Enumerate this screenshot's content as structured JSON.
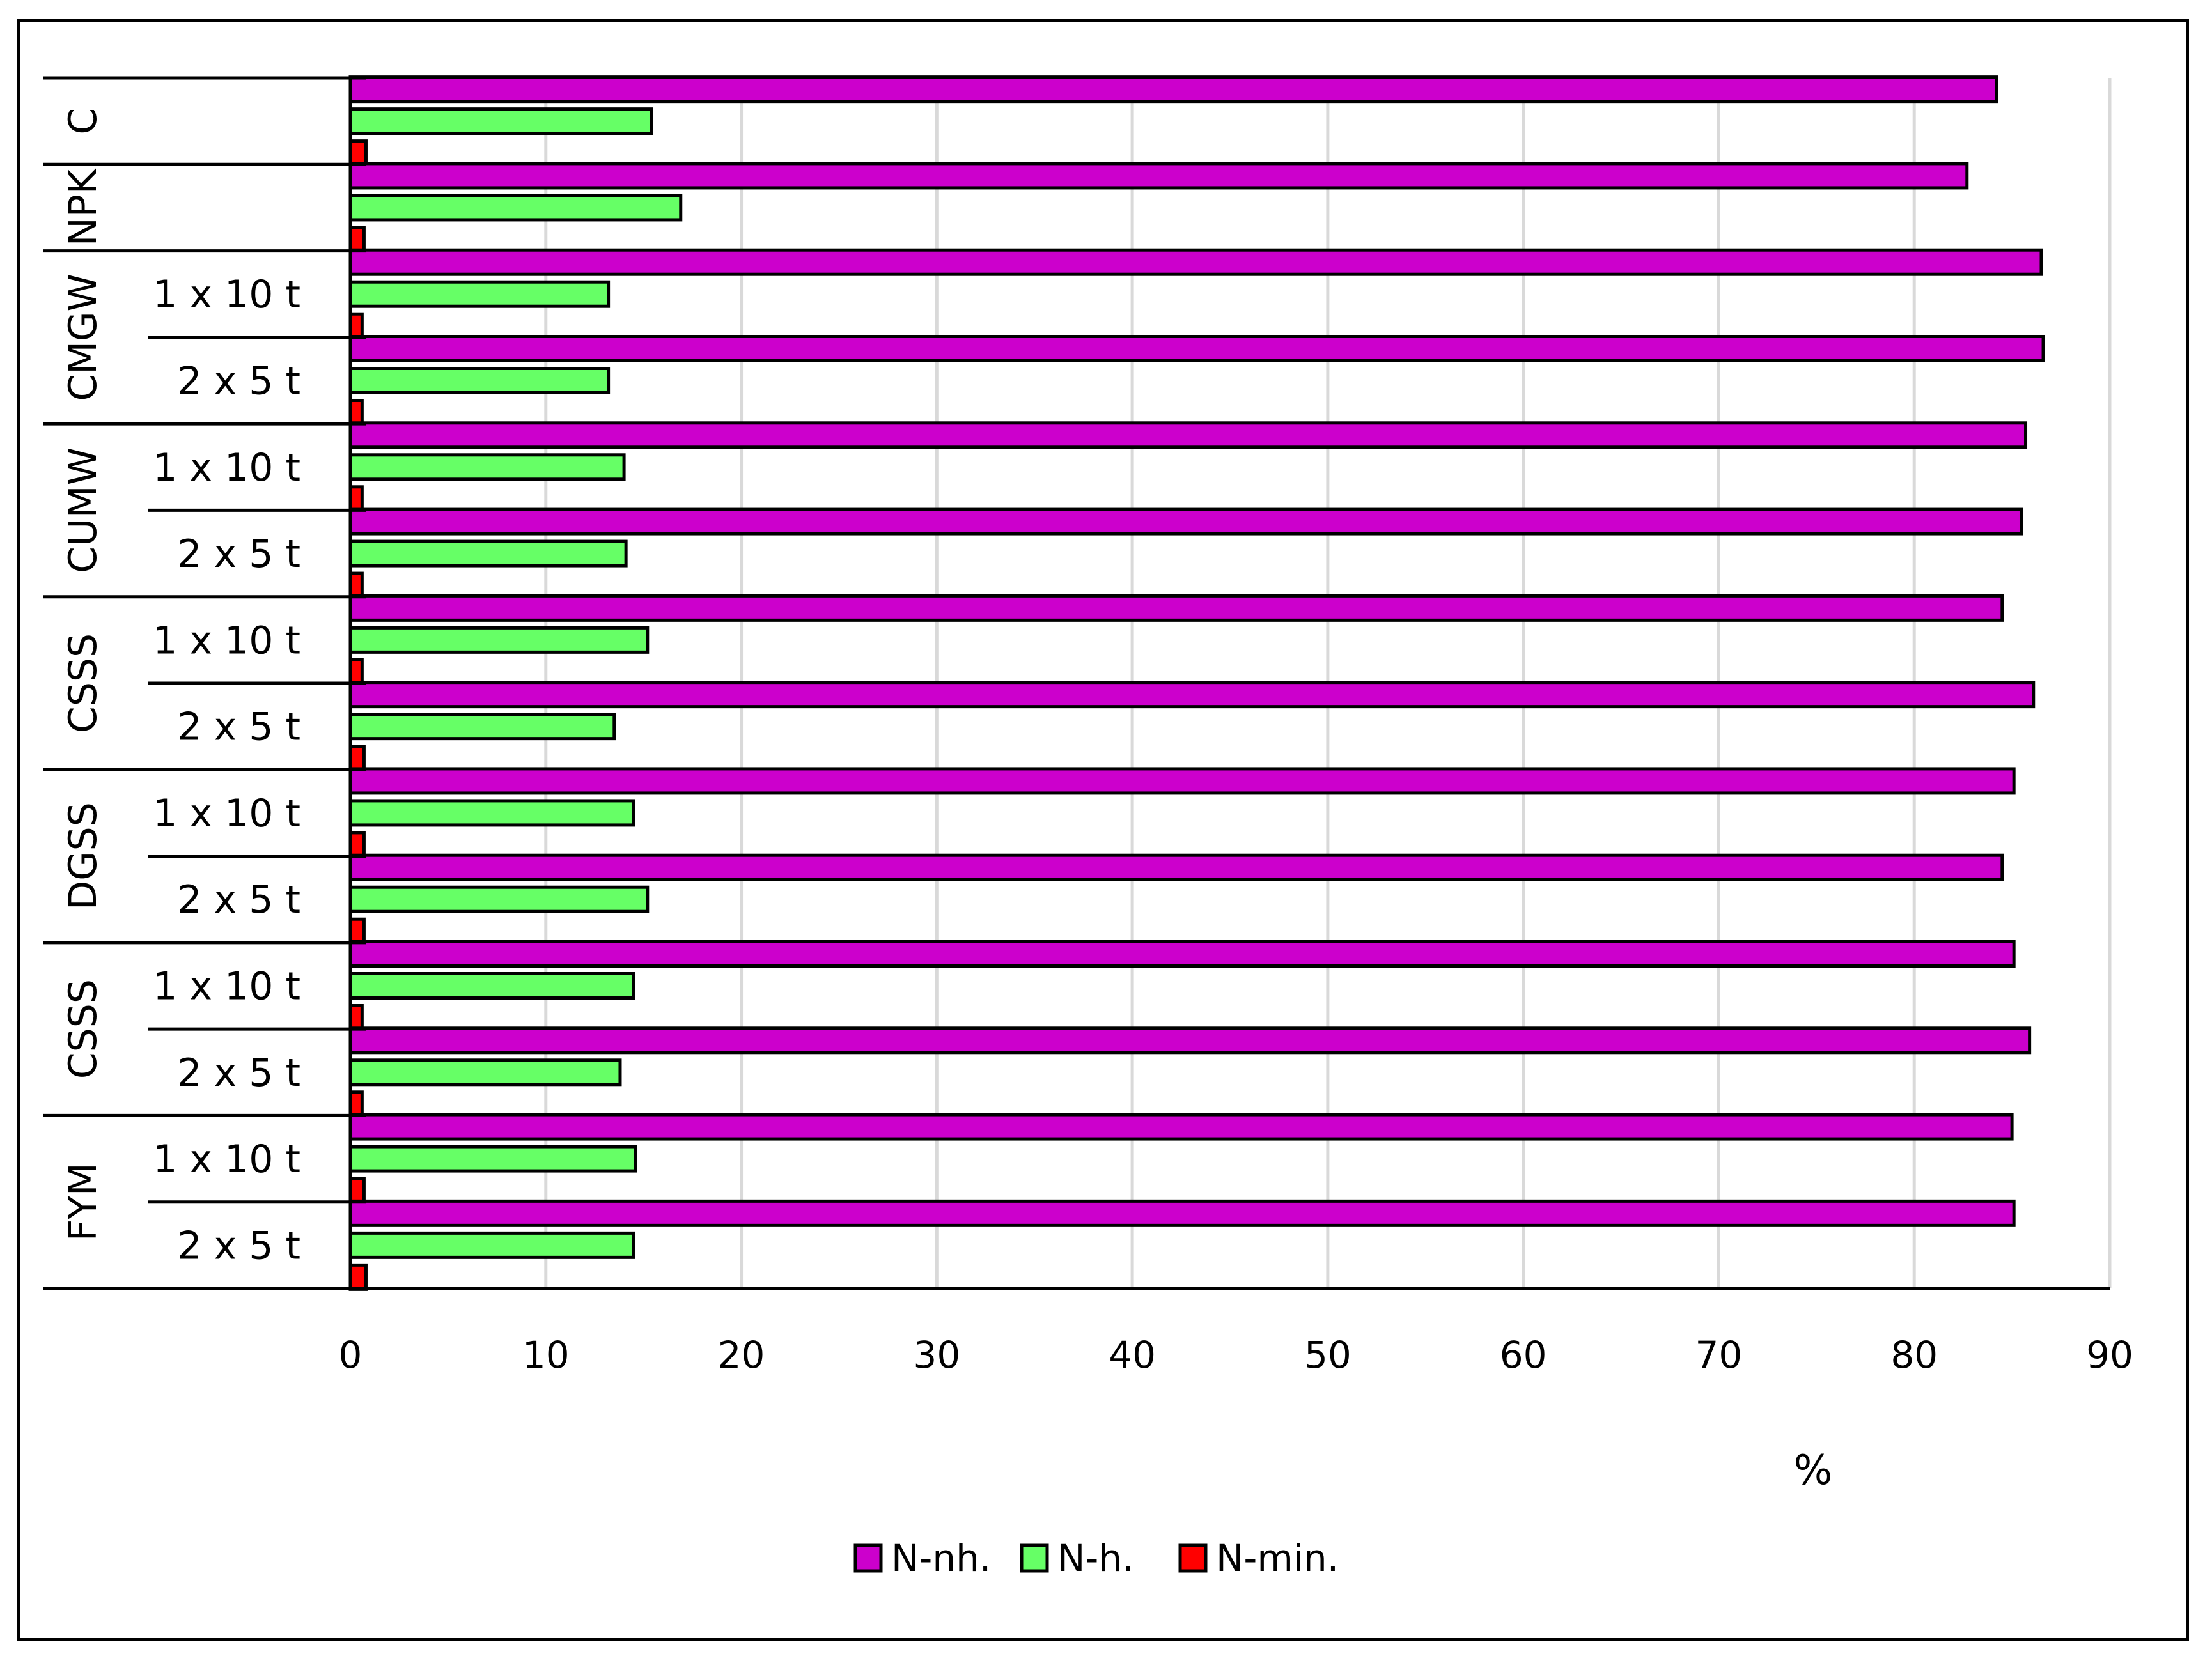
{
  "chart_data": {
    "type": "bar",
    "orientation": "horizontal",
    "xlabel": "%",
    "xlim": [
      0,
      90
    ],
    "xticks": [
      0,
      10,
      20,
      30,
      40,
      50,
      60,
      70,
      80,
      90
    ],
    "grid": "vertical",
    "legend_position": "bottom",
    "groups": [
      {
        "name": "C",
        "subcategories": [
          ""
        ]
      },
      {
        "name": "NPK",
        "subcategories": [
          ""
        ]
      },
      {
        "name": "CMGW",
        "subcategories": [
          "1 x 10 t",
          "2 x 5 t"
        ]
      },
      {
        "name": "CUMW",
        "subcategories": [
          "1 x 10 t",
          "2 x 5 t"
        ]
      },
      {
        "name": "CSSS",
        "subcategories": [
          "1 x 10 t",
          "2 x 5 t"
        ]
      },
      {
        "name": "DGSS",
        "subcategories": [
          "1 x 10 t",
          "2 x 5 t"
        ]
      },
      {
        "name": "CSSS",
        "subcategories": [
          "1 x 10 t",
          "2 x 5 t"
        ]
      },
      {
        "name": "FYM",
        "subcategories": [
          "1 x 10 t",
          "2 x 5 t"
        ]
      }
    ],
    "series": [
      {
        "name": "N-nh.",
        "color": "#cc00cc",
        "values": [
          84.2,
          82.7,
          86.5,
          86.6,
          85.7,
          85.5,
          84.5,
          86.1,
          85.1,
          84.5,
          85.1,
          85.9,
          85.0,
          85.1
        ]
      },
      {
        "name": "N-h.",
        "color": "#66ff66",
        "values": [
          15.4,
          16.9,
          13.2,
          13.2,
          14.0,
          14.1,
          15.2,
          13.5,
          14.5,
          15.2,
          14.5,
          13.8,
          14.6,
          14.5
        ]
      },
      {
        "name": "N-min.",
        "color": "#ff0000",
        "values": [
          0.8,
          0.7,
          0.6,
          0.6,
          0.6,
          0.6,
          0.6,
          0.7,
          0.7,
          0.7,
          0.6,
          0.6,
          0.7,
          0.8
        ]
      }
    ]
  }
}
